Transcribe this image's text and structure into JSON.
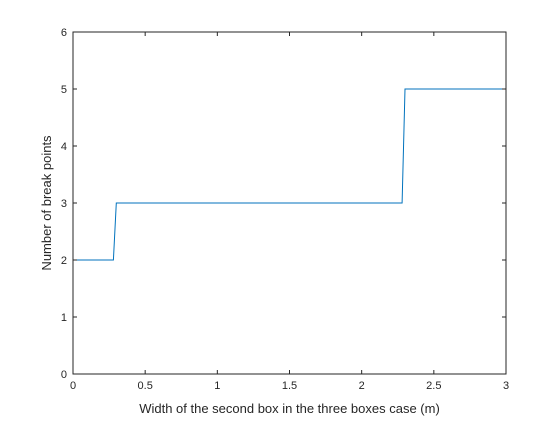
{
  "chart_data": {
    "type": "line",
    "xlabel": "Width of the second box in the three boxes case (m)",
    "ylabel": "Number of break points",
    "xlim": [
      0,
      3
    ],
    "ylim": [
      0,
      6
    ],
    "xticks": [
      0,
      0.5,
      1,
      1.5,
      2,
      2.5,
      3
    ],
    "xtick_labels": [
      "0",
      "0.5",
      "1",
      "1.5",
      "2",
      "2.5",
      "3"
    ],
    "yticks": [
      0,
      1,
      2,
      3,
      4,
      5,
      6
    ],
    "ytick_labels": [
      "0",
      "1",
      "2",
      "3",
      "4",
      "5",
      "6"
    ],
    "grid": false,
    "series": [
      {
        "color": "#0072BD",
        "x": [
          0,
          0.28,
          0.3,
          2.28,
          2.3,
          3
        ],
        "y": [
          2,
          2,
          3,
          3,
          5,
          5
        ]
      }
    ]
  }
}
